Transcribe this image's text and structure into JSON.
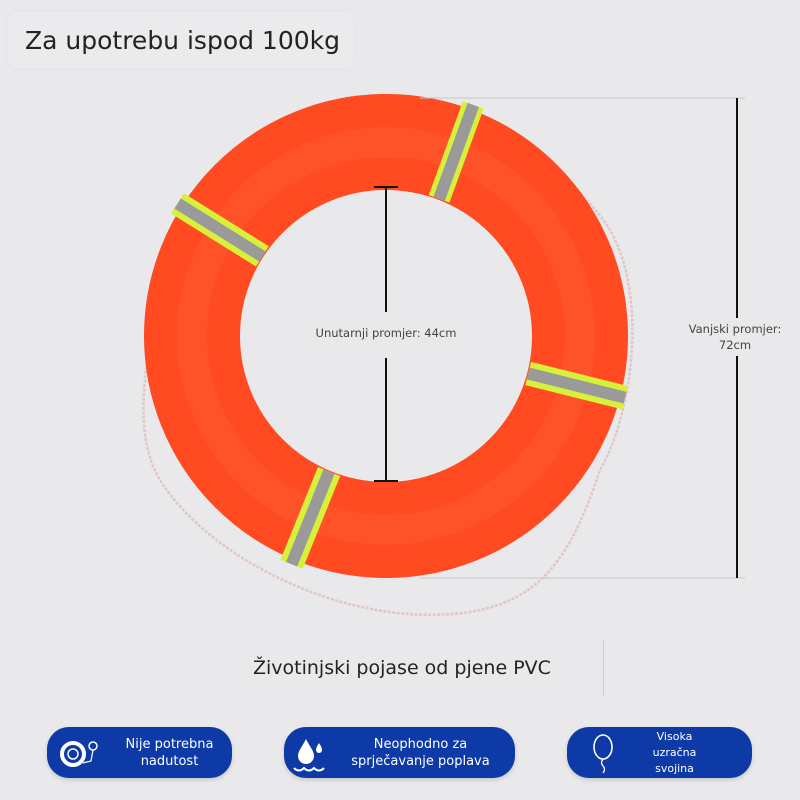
{
  "title": "Za upotrebu ispod 100kg",
  "dimensions": {
    "inner_label": "Unutarnji promjer: 44cm",
    "outer_label_line1": "Vanjski promjer:",
    "outer_label_line2": "72cm"
  },
  "caption": "Životinjski pojase od pjene PVC",
  "colors": {
    "ring": "#ff4a22",
    "band_yellow": "#d8f03a",
    "band_gray": "#9a9a9a",
    "badge": "#0d3aa6"
  },
  "features": [
    {
      "icon": "life-ring-pump-icon",
      "line1": "Nije potrebna",
      "line2": "nadutost"
    },
    {
      "icon": "water-drop-icon",
      "line1": "Neophodno za",
      "line2": "sprječavanje poplava"
    },
    {
      "icon": "balloon-icon",
      "line1": "Visoka",
      "line2": "uzračna",
      "line3": "svojina"
    }
  ]
}
